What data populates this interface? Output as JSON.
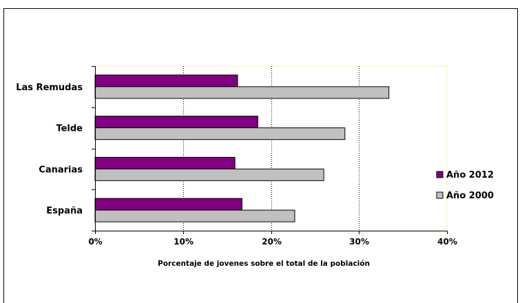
{
  "chart_data": {
    "type": "bar",
    "orientation": "horizontal",
    "categories": [
      "Las Remudas",
      "Telde",
      "Canarias",
      "España"
    ],
    "series": [
      {
        "name": "Año 2012",
        "values": [
          16.2,
          18.5,
          15.9,
          16.7
        ],
        "color": "#800080"
      },
      {
        "name": "Año 2000",
        "values": [
          33.4,
          28.4,
          26.0,
          22.7
        ],
        "color": "#c0c0c0"
      }
    ],
    "xlabel": "Porcentaje de jovenes sobre el total de la población",
    "ylabel": "",
    "xlim": [
      0,
      40
    ],
    "xticks": [
      "0%",
      "10%",
      "20%",
      "30%",
      "40%"
    ],
    "grid": "vertical dotted",
    "legend": "right"
  }
}
